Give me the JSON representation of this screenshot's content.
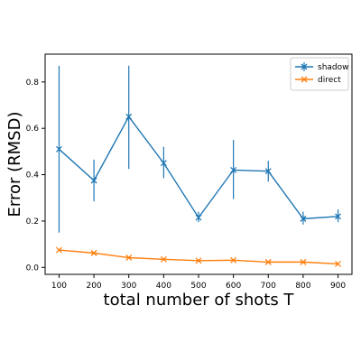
{
  "chart_data": {
    "type": "line",
    "title": "",
    "xlabel": "total number of shots T",
    "ylabel": "Error (RMSD)",
    "x": [
      100,
      200,
      300,
      400,
      500,
      600,
      700,
      800,
      900
    ],
    "xlim": [
      60,
      940
    ],
    "ylim": [
      -0.03,
      0.92
    ],
    "xticks": [
      100,
      200,
      300,
      400,
      500,
      600,
      700,
      800,
      900
    ],
    "yticks": [
      0.0,
      0.2,
      0.4,
      0.6,
      0.8
    ],
    "ytick_labels": [
      "0.0",
      "0.2",
      "0.4",
      "0.6",
      "0.8"
    ],
    "grid": false,
    "legend_position": "top-right",
    "series": [
      {
        "name": "shadow",
        "color": "#1f77b4",
        "marker": "x",
        "values": [
          0.51,
          0.375,
          0.65,
          0.45,
          0.215,
          0.42,
          0.415,
          0.21,
          0.22
        ],
        "error_low": [
          0.15,
          0.285,
          0.425,
          0.385,
          0.195,
          0.295,
          0.37,
          0.185,
          0.195
        ],
        "error_high": [
          0.87,
          0.465,
          0.87,
          0.52,
          0.24,
          0.55,
          0.46,
          0.24,
          0.25
        ]
      },
      {
        "name": "direct",
        "color": "#ff7f0e",
        "marker": "x",
        "values": [
          0.075,
          0.062,
          0.042,
          0.035,
          0.029,
          0.031,
          0.023,
          0.023,
          0.015
        ]
      }
    ]
  }
}
